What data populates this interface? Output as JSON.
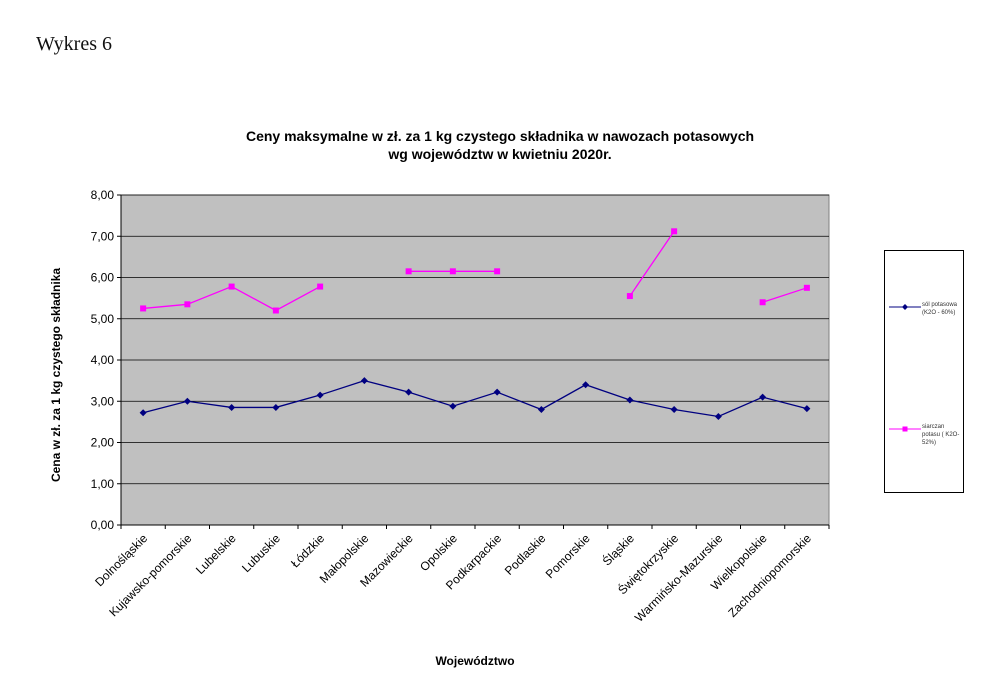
{
  "figure_label": "Wykres 6",
  "chart_data": {
    "type": "line",
    "title": [
      "Ceny maksymalne w zł. za 1 kg czystego składnika w nawozach potasowych",
      "wg województw w kwietniu 2020r."
    ],
    "xlabel": "Województwo",
    "ylabel": "Cena w zł. za 1 kg czystego składnika",
    "ylim": [
      0,
      8
    ],
    "y_ticks": [
      "0,00",
      "1,00",
      "2,00",
      "3,00",
      "4,00",
      "5,00",
      "6,00",
      "7,00",
      "8,00"
    ],
    "grid": true,
    "legend_position": "right",
    "categories": [
      "Dolnośląskie",
      "Kujawsko-pomorskie",
      "Lubelskie",
      "Lubuskie",
      "Łódzkie",
      "Małopolskie",
      "Mazowieckie",
      "Opolskie",
      "Podkarpackie",
      "Podlaskie",
      "Pomorskie",
      "Śląskie",
      "Świętokrzyskie",
      "Warmińsko-Mazurskie",
      "Wielkopolskie",
      "Zachodniopomorskie"
    ],
    "series": [
      {
        "name": "sól potasowa (K2O - 60%)",
        "color": "#000080",
        "marker": "diamond",
        "values": [
          2.72,
          3.0,
          2.85,
          2.85,
          3.15,
          3.5,
          3.22,
          2.88,
          3.22,
          2.8,
          3.4,
          3.03,
          2.8,
          2.63,
          3.1,
          2.82
        ]
      },
      {
        "name": "siarczan potasu ( K2O- 52%)",
        "color": "#FF00FF",
        "marker": "square",
        "values": [
          5.25,
          5.35,
          5.78,
          5.2,
          5.78,
          null,
          6.15,
          6.15,
          6.15,
          null,
          null,
          5.55,
          7.12,
          null,
          5.4,
          5.75
        ]
      }
    ]
  }
}
